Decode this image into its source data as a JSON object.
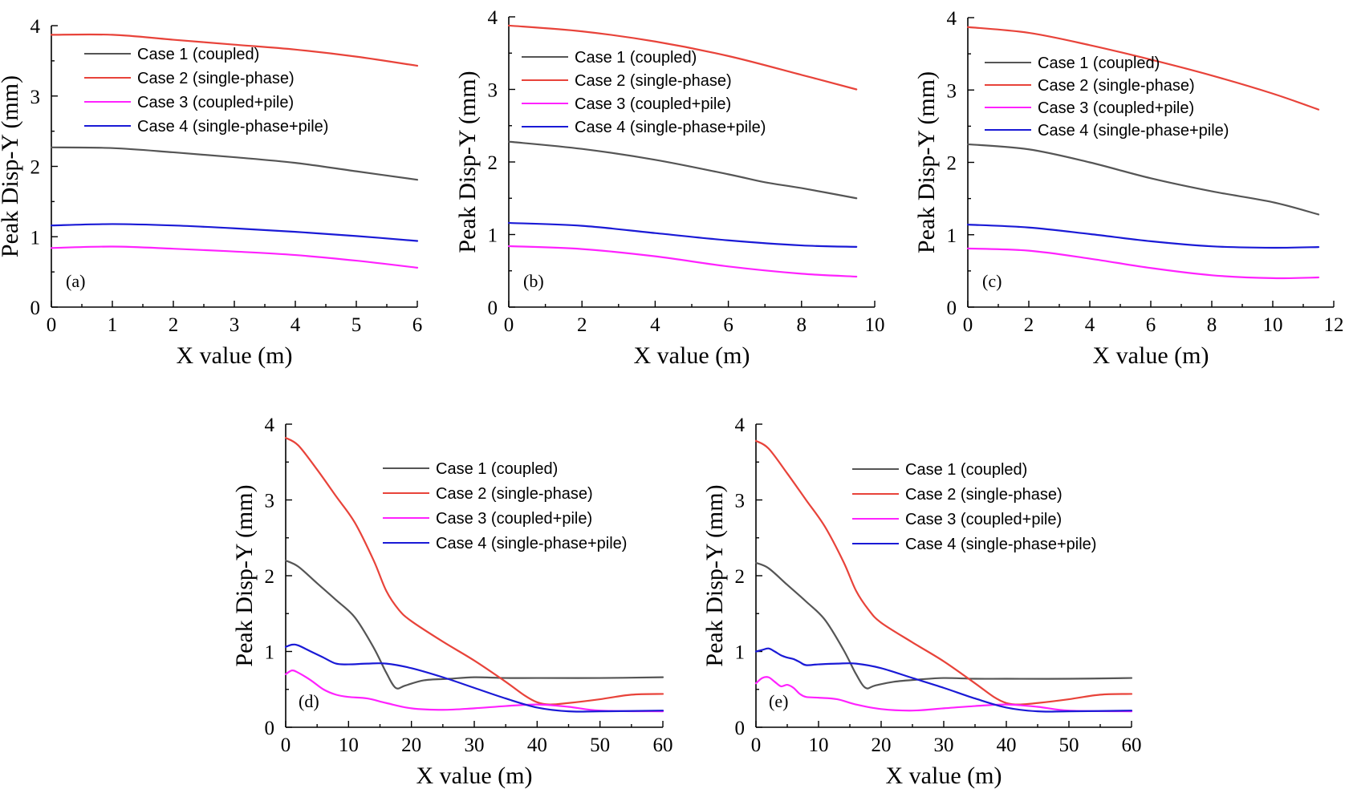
{
  "figure": {
    "series_colors": [
      "#555555",
      "#e8433a",
      "#ff22ff",
      "#1a1ad6"
    ]
  },
  "chart_data": [
    {
      "id": "a",
      "type": "line",
      "panel_label": "(a)",
      "xlabel": "X value (m)",
      "ylabel": "Peak Disp-Y (mm)",
      "xlim": [
        0,
        6
      ],
      "ylim": [
        0,
        4
      ],
      "xticks": [
        0,
        1,
        2,
        3,
        4,
        5,
        6
      ],
      "yticks": [
        0,
        1,
        2,
        3,
        4
      ],
      "grid": false,
      "legend_position": "top-left",
      "series": [
        {
          "name": "Case 1 (coupled)",
          "x": [
            0,
            1,
            2,
            3,
            4,
            5,
            6
          ],
          "values": [
            2.27,
            2.26,
            2.2,
            2.13,
            2.05,
            1.93,
            1.81
          ]
        },
        {
          "name": "Case 2 (single-phase)",
          "x": [
            0,
            1,
            2,
            3,
            4,
            5,
            6
          ],
          "values": [
            3.87,
            3.87,
            3.8,
            3.73,
            3.66,
            3.56,
            3.43
          ]
        },
        {
          "name": "Case 3 (coupled+pile)",
          "x": [
            0,
            1,
            2,
            3,
            4,
            5,
            6
          ],
          "values": [
            0.84,
            0.86,
            0.83,
            0.79,
            0.74,
            0.66,
            0.56
          ]
        },
        {
          "name": "Case 4 (single-phase+pile)",
          "x": [
            0,
            1,
            2,
            3,
            4,
            5,
            6
          ],
          "values": [
            1.16,
            1.18,
            1.16,
            1.12,
            1.07,
            1.01,
            0.94
          ]
        }
      ]
    },
    {
      "id": "b",
      "type": "line",
      "panel_label": "(b)",
      "xlabel": "X value (m)",
      "ylabel": "Peak Disp-Y (mm)",
      "xlim": [
        0,
        10
      ],
      "ylim": [
        0,
        4
      ],
      "xticks": [
        0,
        2,
        4,
        6,
        8,
        10
      ],
      "yticks": [
        0,
        1,
        2,
        3,
        4
      ],
      "grid": false,
      "legend_position": "top-left",
      "series": [
        {
          "name": "Case 1 (coupled)",
          "x": [
            0,
            2,
            4,
            6,
            7,
            8,
            9.5
          ],
          "values": [
            2.28,
            2.18,
            2.03,
            1.83,
            1.72,
            1.64,
            1.5
          ]
        },
        {
          "name": "Case 2 (single-phase)",
          "x": [
            0,
            2,
            4,
            6,
            8,
            9.5
          ],
          "values": [
            3.88,
            3.8,
            3.66,
            3.46,
            3.2,
            3.0
          ]
        },
        {
          "name": "Case 3 (coupled+pile)",
          "x": [
            0,
            2,
            4,
            6,
            8,
            9.5
          ],
          "values": [
            0.84,
            0.8,
            0.7,
            0.56,
            0.46,
            0.42
          ]
        },
        {
          "name": "Case 4 (single-phase+pile)",
          "x": [
            0,
            2,
            4,
            6,
            8,
            9.5
          ],
          "values": [
            1.16,
            1.12,
            1.02,
            0.92,
            0.85,
            0.83
          ]
        }
      ]
    },
    {
      "id": "c",
      "type": "line",
      "panel_label": "(c)",
      "xlabel": "X value (m)",
      "ylabel": "Peak Disp-Y (mm)",
      "xlim": [
        0,
        12
      ],
      "ylim": [
        0,
        4
      ],
      "xticks": [
        0,
        2,
        4,
        6,
        8,
        10,
        12
      ],
      "yticks": [
        0,
        1,
        2,
        3,
        4
      ],
      "grid": false,
      "legend_position": "top-left",
      "series": [
        {
          "name": "Case 1 (coupled)",
          "x": [
            0,
            2,
            4,
            6,
            8,
            10,
            11.5
          ],
          "values": [
            2.25,
            2.18,
            2.0,
            1.78,
            1.6,
            1.45,
            1.28
          ]
        },
        {
          "name": "Case 2 (single-phase)",
          "x": [
            0,
            2,
            4,
            6,
            8,
            10,
            11.5
          ],
          "values": [
            3.87,
            3.79,
            3.62,
            3.42,
            3.2,
            2.95,
            2.73
          ]
        },
        {
          "name": "Case 3 (coupled+pile)",
          "x": [
            0,
            2,
            4,
            6,
            8,
            10,
            11.5
          ],
          "values": [
            0.81,
            0.78,
            0.67,
            0.54,
            0.44,
            0.4,
            0.41
          ]
        },
        {
          "name": "Case 4 (single-phase+pile)",
          "x": [
            0,
            2,
            4,
            6,
            8,
            10,
            11.5
          ],
          "values": [
            1.14,
            1.1,
            1.01,
            0.91,
            0.84,
            0.82,
            0.83
          ]
        }
      ]
    },
    {
      "id": "d",
      "type": "line",
      "panel_label": "(d)",
      "xlabel": "X value (m)",
      "ylabel": "Peak Disp-Y (mm)",
      "xlim": [
        0,
        60
      ],
      "ylim": [
        0,
        4
      ],
      "xticks": [
        0,
        10,
        20,
        30,
        40,
        50,
        60
      ],
      "yticks": [
        0,
        1,
        2,
        3,
        4
      ],
      "grid": false,
      "legend_position": "top-right",
      "series": [
        {
          "name": "Case 1 (coupled)",
          "x": [
            0,
            2,
            5,
            8,
            11,
            14,
            16,
            17.5,
            19,
            22,
            26,
            30,
            35,
            40,
            50,
            60
          ],
          "values": [
            2.2,
            2.12,
            1.9,
            1.68,
            1.45,
            1.05,
            0.72,
            0.52,
            0.55,
            0.62,
            0.64,
            0.66,
            0.65,
            0.65,
            0.65,
            0.66
          ]
        },
        {
          "name": "Case 2 (single-phase)",
          "x": [
            0,
            2,
            5,
            8,
            11,
            14,
            16,
            18,
            20,
            25,
            30,
            35,
            38,
            40,
            42,
            45,
            50,
            55,
            60
          ],
          "values": [
            3.82,
            3.72,
            3.4,
            3.05,
            2.7,
            2.2,
            1.8,
            1.55,
            1.4,
            1.13,
            0.88,
            0.6,
            0.42,
            0.33,
            0.3,
            0.32,
            0.37,
            0.43,
            0.44
          ]
        },
        {
          "name": "Case 3 (coupled+pile)",
          "x": [
            0,
            1,
            2,
            4,
            6,
            8,
            10,
            13,
            16,
            20,
            25,
            30,
            35,
            40,
            45,
            50,
            60
          ],
          "values": [
            0.7,
            0.75,
            0.72,
            0.62,
            0.5,
            0.43,
            0.4,
            0.38,
            0.32,
            0.25,
            0.23,
            0.25,
            0.28,
            0.3,
            0.27,
            0.22,
            0.21
          ]
        },
        {
          "name": "Case 4 (single-phase+pile)",
          "x": [
            0,
            1,
            2,
            4,
            6,
            8,
            10,
            13,
            16,
            20,
            25,
            30,
            35,
            40,
            45,
            50,
            60
          ],
          "values": [
            1.06,
            1.09,
            1.08,
            1.0,
            0.92,
            0.84,
            0.83,
            0.84,
            0.84,
            0.78,
            0.66,
            0.52,
            0.38,
            0.26,
            0.21,
            0.21,
            0.22
          ]
        }
      ]
    },
    {
      "id": "e",
      "type": "line",
      "panel_label": "(e)",
      "xlabel": "X value (m)",
      "ylabel": "Peak Disp-Y (mm)",
      "xlim": [
        0,
        60
      ],
      "ylim": [
        0,
        4
      ],
      "xticks": [
        0,
        10,
        20,
        30,
        40,
        50,
        60
      ],
      "yticks": [
        0,
        1,
        2,
        3,
        4
      ],
      "grid": false,
      "legend_position": "top-right",
      "series": [
        {
          "name": "Case 1 (coupled)",
          "x": [
            0,
            2,
            5,
            8,
            11,
            14,
            16,
            17.5,
            19,
            22,
            26,
            30,
            35,
            40,
            50,
            60
          ],
          "values": [
            2.17,
            2.1,
            1.88,
            1.66,
            1.42,
            1.02,
            0.7,
            0.52,
            0.55,
            0.6,
            0.63,
            0.65,
            0.64,
            0.64,
            0.64,
            0.65
          ]
        },
        {
          "name": "Case 2 (single-phase)",
          "x": [
            0,
            2,
            5,
            8,
            11,
            14,
            16,
            18,
            20,
            25,
            30,
            35,
            38,
            40,
            42,
            45,
            50,
            55,
            60
          ],
          "values": [
            3.78,
            3.68,
            3.35,
            3.0,
            2.65,
            2.18,
            1.8,
            1.55,
            1.38,
            1.12,
            0.87,
            0.58,
            0.4,
            0.32,
            0.3,
            0.32,
            0.37,
            0.43,
            0.44
          ]
        },
        {
          "name": "Case 3 (coupled+pile)",
          "x": [
            0,
            1,
            2,
            3,
            4,
            5,
            6,
            7,
            8,
            10,
            13,
            16,
            20,
            25,
            30,
            35,
            40,
            45,
            50,
            60
          ],
          "values": [
            0.58,
            0.65,
            0.66,
            0.6,
            0.54,
            0.56,
            0.52,
            0.44,
            0.4,
            0.39,
            0.37,
            0.3,
            0.24,
            0.22,
            0.25,
            0.28,
            0.3,
            0.27,
            0.22,
            0.21
          ]
        },
        {
          "name": "Case 4 (single-phase+pile)",
          "x": [
            0,
            1,
            2,
            3,
            4,
            5,
            6,
            7,
            8,
            10,
            13,
            16,
            20,
            25,
            30,
            35,
            40,
            45,
            50,
            60
          ],
          "values": [
            1.0,
            1.02,
            1.04,
            1.0,
            0.95,
            0.92,
            0.9,
            0.86,
            0.82,
            0.83,
            0.84,
            0.84,
            0.78,
            0.65,
            0.52,
            0.38,
            0.26,
            0.21,
            0.21,
            0.22
          ]
        }
      ]
    }
  ]
}
